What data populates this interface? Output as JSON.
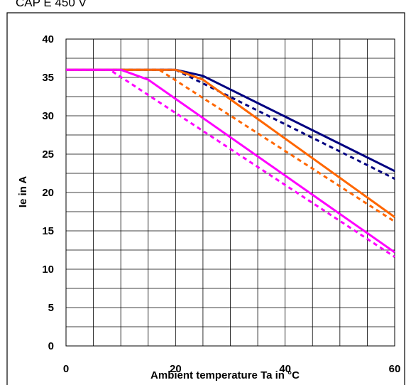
{
  "header": {
    "clipped_text": "CAP E 450 V"
  },
  "chart_data": {
    "type": "line",
    "title": "",
    "xlabel": "Ambient temperature Ta in °C",
    "ylabel": "Ie in A",
    "xlim": [
      0,
      60
    ],
    "ylim": [
      0,
      40
    ],
    "x_ticks": [
      0,
      20,
      40,
      60
    ],
    "y_ticks": [
      0,
      5,
      10,
      15,
      20,
      25,
      30,
      35,
      40
    ],
    "grid": {
      "vertical_step": 5,
      "horizontal_step": 2.5
    },
    "legend": "none",
    "series": [
      {
        "color": "#000080",
        "dash": "solid",
        "points": [
          [
            0,
            36
          ],
          [
            20,
            36
          ],
          [
            25,
            35.2
          ],
          [
            60,
            22.8
          ]
        ]
      },
      {
        "color": "#000080",
        "dash": "dotted",
        "points": [
          [
            0,
            36
          ],
          [
            20,
            36
          ],
          [
            60,
            21.8
          ]
        ]
      },
      {
        "color": "#FF6600",
        "dash": "solid",
        "points": [
          [
            0,
            36
          ],
          [
            20,
            36
          ],
          [
            25,
            34.7
          ],
          [
            60,
            16.8
          ]
        ]
      },
      {
        "color": "#FF6600",
        "dash": "dotted",
        "points": [
          [
            0,
            36
          ],
          [
            17,
            36
          ],
          [
            60,
            16.2
          ]
        ]
      },
      {
        "color": "#FF00FF",
        "dash": "solid",
        "points": [
          [
            0,
            36
          ],
          [
            10,
            36
          ],
          [
            15,
            34.7
          ],
          [
            60,
            12.2
          ]
        ]
      },
      {
        "color": "#FF00FF",
        "dash": "dotted",
        "points": [
          [
            0,
            36
          ],
          [
            8,
            36
          ],
          [
            60,
            11.6
          ]
        ]
      }
    ]
  }
}
